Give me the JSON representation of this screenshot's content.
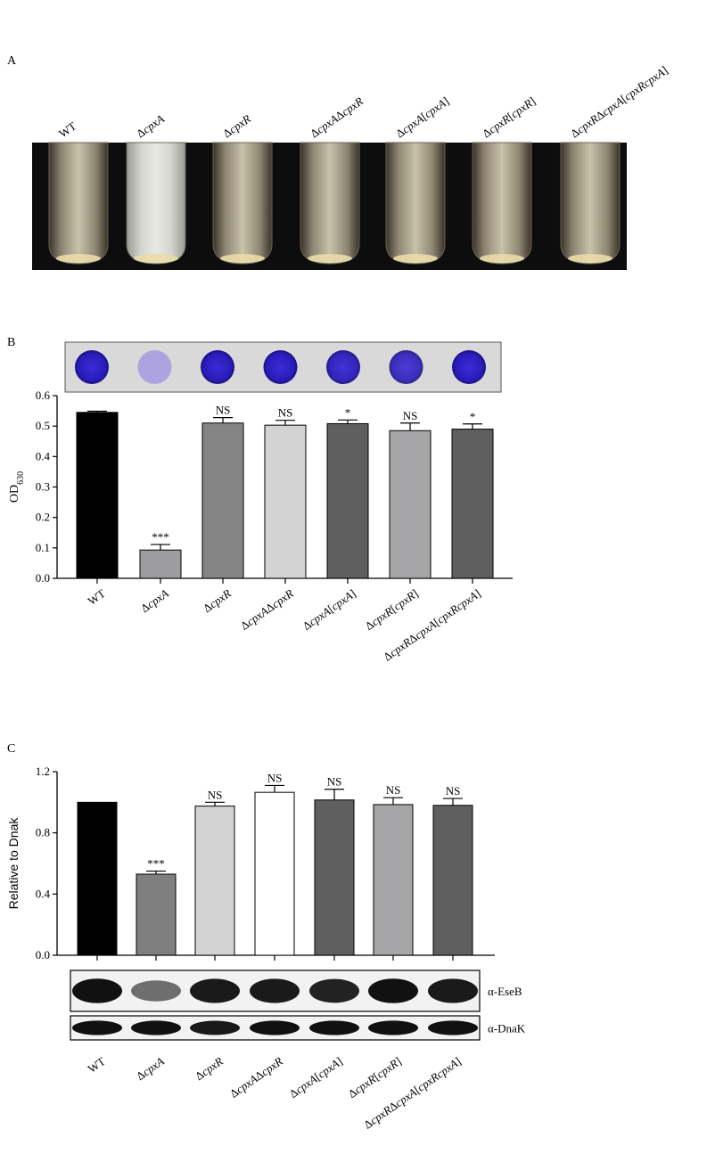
{
  "panels": {
    "A": {
      "label": "A",
      "tube_labels": [
        "WT",
        "ΔcpxA",
        "ΔcpxR",
        "ΔcpxAΔcpxR",
        "ΔcpxA[cpxA]",
        "ΔcpxR[cpxR]",
        "ΔcpxRΔcpxA[cpxRcpxA]"
      ],
      "tubes": [
        {
          "name": "WT",
          "turbid": false
        },
        {
          "name": "ΔcpxA",
          "turbid": true
        },
        {
          "name": "ΔcpxR",
          "turbid": false
        },
        {
          "name": "ΔcpxAΔcpxR",
          "turbid": false
        },
        {
          "name": "ΔcpxA[cpxA]",
          "turbid": false
        },
        {
          "name": "ΔcpxR[cpxR]",
          "turbid": false
        },
        {
          "name": "ΔcpxRΔcpxA[cpxRcpxA]",
          "turbid": false
        }
      ]
    },
    "B": {
      "label": "B",
      "well_stain_levels": [
        1,
        0.35,
        1,
        1,
        0.95,
        0.9,
        1
      ]
    },
    "C": {
      "label": "C",
      "blot_labels": [
        "α-EseB",
        "α-DnaK"
      ],
      "eseb_band_intensity": [
        1,
        0.45,
        0.95,
        0.95,
        0.9,
        1,
        0.95
      ],
      "dnak_band_intensity": [
        1,
        1,
        0.95,
        1,
        1,
        1,
        1
      ]
    }
  },
  "chart_data": [
    {
      "type": "bar",
      "panel": "B",
      "categories": [
        "WT",
        "ΔcpxA",
        "ΔcpxR",
        "ΔcpxAΔcpxR",
        "ΔcpxA[cpxA]",
        "ΔcpxR[cpxR]",
        "ΔcpxRΔcpxA[cpxRcpxA]"
      ],
      "values": [
        0.545,
        0.093,
        0.51,
        0.503,
        0.508,
        0.485,
        0.49
      ],
      "errors": [
        0.004,
        0.018,
        0.018,
        0.016,
        0.012,
        0.025,
        0.017
      ],
      "significance": [
        "",
        "***",
        "NS",
        "NS",
        "*",
        "NS",
        "*"
      ],
      "bar_colors": [
        "#000000",
        "#9d9d9f",
        "#858585",
        "#d3d3d3",
        "#5f5f5f",
        "#a6a6a8",
        "#5f5f5f"
      ],
      "ylabel": "OD630",
      "ylim": [
        0,
        0.6
      ],
      "yticks": [
        "0.0",
        "0.1",
        "0.2",
        "0.3",
        "0.4",
        "0.5",
        "0.6"
      ]
    },
    {
      "type": "bar",
      "panel": "C",
      "categories": [
        "WT",
        "ΔcpxA",
        "ΔcpxR",
        "ΔcpxAΔcpxR",
        "ΔcpxA[cpxA]",
        "ΔcpxR[cpxR]",
        "ΔcpxRΔcpxA[cpxRcpxA]"
      ],
      "values": [
        1.0,
        0.53,
        0.975,
        1.065,
        1.015,
        0.985,
        0.98
      ],
      "errors": [
        0.0,
        0.02,
        0.025,
        0.045,
        0.07,
        0.045,
        0.045
      ],
      "significance": [
        "",
        "***",
        "NS",
        "NS",
        "NS",
        "NS",
        "NS"
      ],
      "bar_colors": [
        "#000000",
        "#7f7f7f",
        "#d3d3d3",
        "#ffffff",
        "#5f5f5f",
        "#a6a6a8",
        "#5f5f5f"
      ],
      "ylabel": "Relative to Dnak",
      "ylim": [
        0,
        1.2
      ],
      "yticks": [
        "0.0",
        "0.4",
        "0.8",
        "1.2"
      ]
    }
  ]
}
